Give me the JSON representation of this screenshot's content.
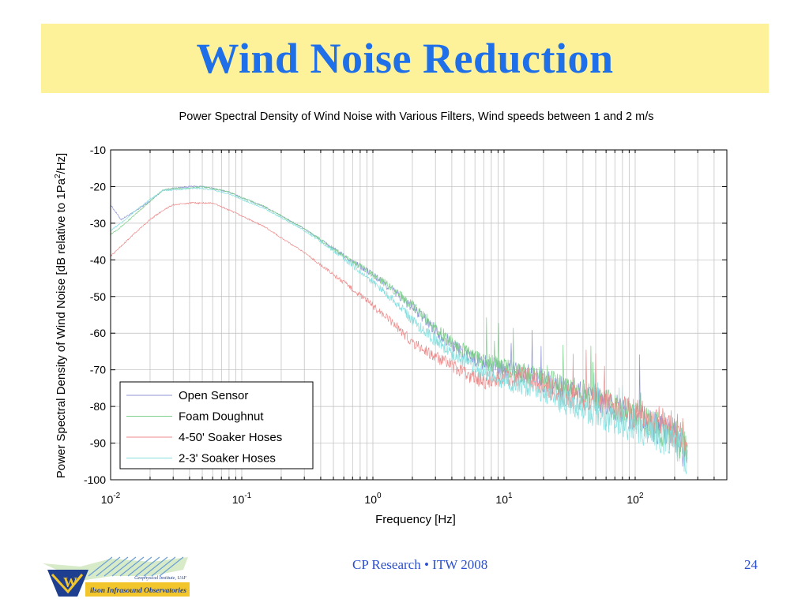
{
  "slide": {
    "title": "Wind Noise Reduction",
    "footer_center": "CP Research • ITW 2008",
    "page_number": "24",
    "logo_text_top": "Geophysical Institute, UAF",
    "logo_text_bottom": "ilson Infrasound Observatories",
    "logo_letter": "W"
  },
  "chart_data": {
    "type": "line",
    "title": "Power Spectral Density of Wind Noise with Various Filters, Wind speeds between 1 and 2 m/s",
    "xlabel": "Frequency [Hz]",
    "ylabel_main": "Power Spectral Density of Wind Noise [dB relative to 1Pa",
    "ylabel_sup": "2",
    "ylabel_end": "/Hz]",
    "x_scale": "log",
    "xlim": [
      0.01,
      500
    ],
    "ylim": [
      -100,
      -10
    ],
    "x_ticks": [
      {
        "value": 0.01,
        "base": "10",
        "exp": "-2"
      },
      {
        "value": 0.1,
        "base": "10",
        "exp": "-1"
      },
      {
        "value": 1,
        "base": "10",
        "exp": "0"
      },
      {
        "value": 10,
        "base": "10",
        "exp": "1"
      },
      {
        "value": 100,
        "base": "10",
        "exp": "2"
      }
    ],
    "y_ticks": [
      -10,
      -20,
      -30,
      -40,
      -50,
      -60,
      -70,
      -80,
      -90,
      -100
    ],
    "grid": true,
    "legend_position": "bottom-left",
    "series": [
      {
        "name": "Open Sensor",
        "color": "#8c93d6",
        "x": [
          0.01,
          0.012,
          0.015,
          0.02,
          0.025,
          0.03,
          0.04,
          0.05,
          0.06,
          0.07,
          0.08,
          0.1,
          0.15,
          0.2,
          0.3,
          0.4,
          0.5,
          0.7,
          1,
          1.5,
          2,
          3,
          4,
          5,
          7,
          10,
          15,
          20,
          30,
          50,
          70,
          100,
          150,
          200,
          250
        ],
        "y": [
          -25,
          -29,
          -27,
          -24,
          -21,
          -20.5,
          -20,
          -20,
          -20.5,
          -21,
          -21.5,
          -23,
          -25.5,
          -28,
          -31.5,
          -34.5,
          -37,
          -40.5,
          -44,
          -49,
          -53,
          -59,
          -63,
          -65.5,
          -68,
          -70,
          -71,
          -73,
          -75,
          -78,
          -80,
          -83,
          -86,
          -88,
          -94
        ]
      },
      {
        "name": "Foam Doughnut",
        "color": "#7fd08c",
        "x": [
          0.01,
          0.012,
          0.015,
          0.02,
          0.025,
          0.03,
          0.04,
          0.05,
          0.06,
          0.07,
          0.08,
          0.1,
          0.15,
          0.2,
          0.3,
          0.4,
          0.5,
          0.7,
          1,
          1.5,
          2,
          3,
          4,
          5,
          7,
          10,
          15,
          20,
          30,
          50,
          70,
          100,
          150,
          200,
          250
        ],
        "y": [
          -33,
          -31,
          -28,
          -24,
          -21,
          -20.5,
          -20.5,
          -20,
          -20.5,
          -21,
          -21.5,
          -23,
          -25.5,
          -28,
          -31.5,
          -34.5,
          -37,
          -40.5,
          -44,
          -48.5,
          -52.5,
          -58.5,
          -62.5,
          -65,
          -67.5,
          -69.5,
          -71,
          -72.5,
          -74.5,
          -77.5,
          -80,
          -83,
          -86,
          -88,
          -92
        ]
      },
      {
        "name": "4-50' Soaker Hoses",
        "color": "#ec8a8a",
        "x": [
          0.01,
          0.015,
          0.02,
          0.025,
          0.03,
          0.04,
          0.05,
          0.06,
          0.07,
          0.1,
          0.15,
          0.2,
          0.3,
          0.5,
          0.7,
          1,
          1.5,
          2,
          3,
          4,
          5,
          7,
          10,
          15,
          20,
          30,
          50,
          70,
          100,
          150,
          200,
          250
        ],
        "y": [
          -39,
          -33,
          -29,
          -26.5,
          -25,
          -24.5,
          -24.5,
          -24.5,
          -25.5,
          -28,
          -31,
          -34,
          -38,
          -44,
          -48,
          -52.5,
          -58,
          -62.5,
          -66.5,
          -69,
          -71,
          -73,
          -72,
          -72,
          -74,
          -77,
          -78,
          -80,
          -82,
          -84,
          -86,
          -89
        ]
      },
      {
        "name": "2-3' Soaker Hoses",
        "color": "#86dede",
        "x": [
          0.01,
          0.012,
          0.015,
          0.02,
          0.025,
          0.03,
          0.04,
          0.05,
          0.06,
          0.07,
          0.08,
          0.1,
          0.15,
          0.2,
          0.3,
          0.4,
          0.5,
          0.7,
          1,
          1.5,
          2,
          3,
          4,
          5,
          7,
          10,
          15,
          20,
          30,
          50,
          70,
          100,
          150,
          200,
          250
        ],
        "y": [
          -32,
          -30,
          -27,
          -23.5,
          -21,
          -21,
          -20.5,
          -20.5,
          -21,
          -21.5,
          -22,
          -23.5,
          -26,
          -28.5,
          -32,
          -35,
          -37.5,
          -41.5,
          -46,
          -51.5,
          -56.5,
          -62,
          -65.5,
          -67.5,
          -71,
          -73,
          -75,
          -77,
          -79,
          -82,
          -84,
          -86,
          -88,
          -90,
          -95
        ]
      }
    ]
  }
}
